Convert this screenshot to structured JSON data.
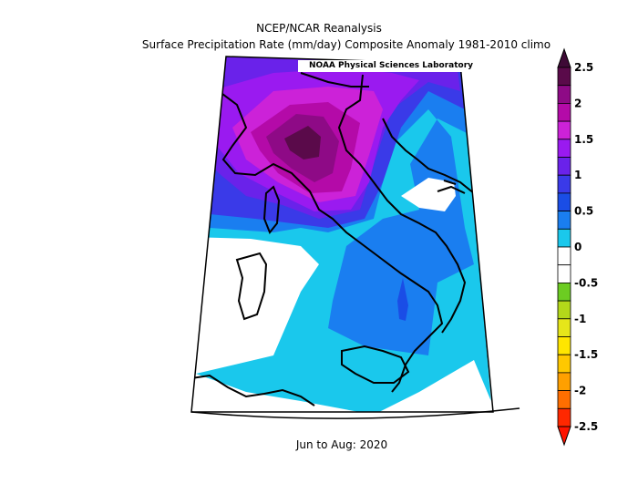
{
  "title_line1": "NCEP/NCAR Reanalysis",
  "title_line2": "Surface Precipitation Rate (mm/day) Composite Anomaly 1981-2010 climo",
  "credit": "NOAA Physical Sciences Laboratory",
  "period": "Jun to Aug: 2020",
  "colorbar": {
    "labels": [
      "2.5",
      "2",
      "1.5",
      "1",
      "0.5",
      "0",
      "-0.5",
      "-1",
      "-1.5",
      "-2",
      "-2.5"
    ],
    "bins": [
      {
        "color": "#5a0a4a"
      },
      {
        "color": "#8e0a86"
      },
      {
        "color": "#b40aa8"
      },
      {
        "color": "#cc22d8"
      },
      {
        "color": "#9a1af0"
      },
      {
        "color": "#6a22ea"
      },
      {
        "color": "#3a3ae8"
      },
      {
        "color": "#1a4de6"
      },
      {
        "color": "#1a7ef0"
      },
      {
        "color": "#1ac8ec"
      },
      {
        "color": "#ffffff"
      },
      {
        "color": "#ffffff"
      },
      {
        "color": "#6ccc22"
      },
      {
        "color": "#b4d81a"
      },
      {
        "color": "#e6e61a"
      },
      {
        "color": "#ffe600"
      },
      {
        "color": "#ffc800"
      },
      {
        "color": "#ffa000"
      },
      {
        "color": "#ff6e00"
      },
      {
        "color": "#ff2800"
      }
    ],
    "top_arrow_color": "#3e0a36",
    "bottom_arrow_color": "#ff1400"
  }
}
